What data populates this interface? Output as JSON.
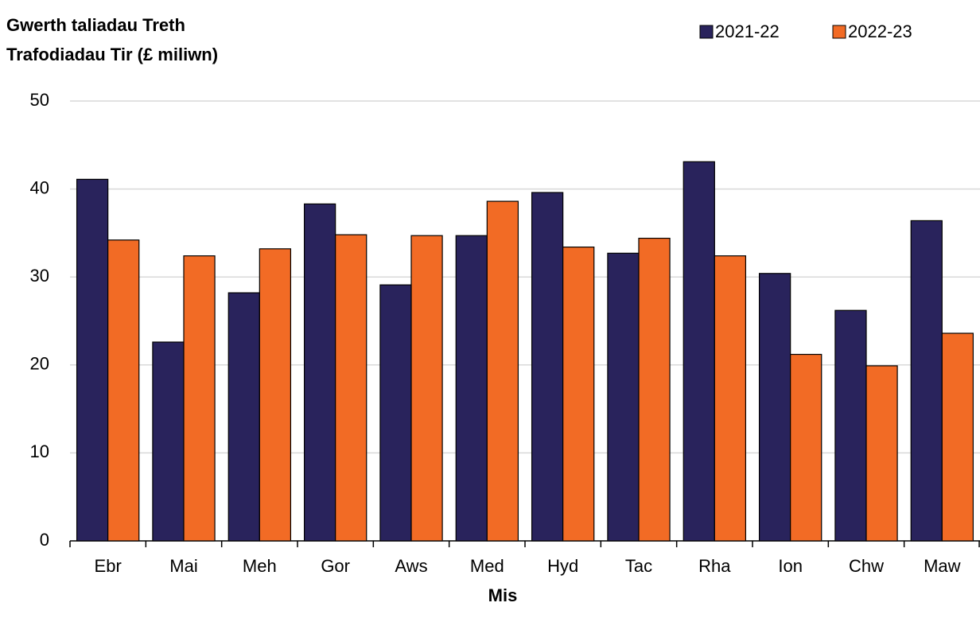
{
  "chart_data": {
    "type": "bar",
    "title": [
      "Gwerth taliadau Treth",
      "Trafodiadau Tir (£ miliwn)"
    ],
    "x_label": "Mis",
    "categories": [
      "Ebr",
      "Mai",
      "Meh",
      "Gor",
      "Aws",
      "Med",
      "Hyd",
      "Tac",
      "Rha",
      "Ion",
      "Chw",
      "Maw"
    ],
    "series": [
      {
        "name": "2021-22",
        "color": "#29235c",
        "values": [
          41.1,
          22.6,
          28.2,
          38.3,
          29.1,
          34.7,
          39.6,
          32.7,
          43.1,
          30.4,
          26.2,
          36.4
        ]
      },
      {
        "name": "2022-23",
        "color": "#f26b25",
        "values": [
          34.2,
          32.4,
          33.2,
          34.8,
          34.7,
          38.6,
          33.4,
          34.4,
          32.4,
          21.2,
          19.9,
          23.6
        ]
      }
    ],
    "ylim": [
      0,
      50
    ],
    "yticks": [
      0,
      10,
      20,
      30,
      40,
      50
    ],
    "grid": true,
    "legend": "top-right"
  }
}
